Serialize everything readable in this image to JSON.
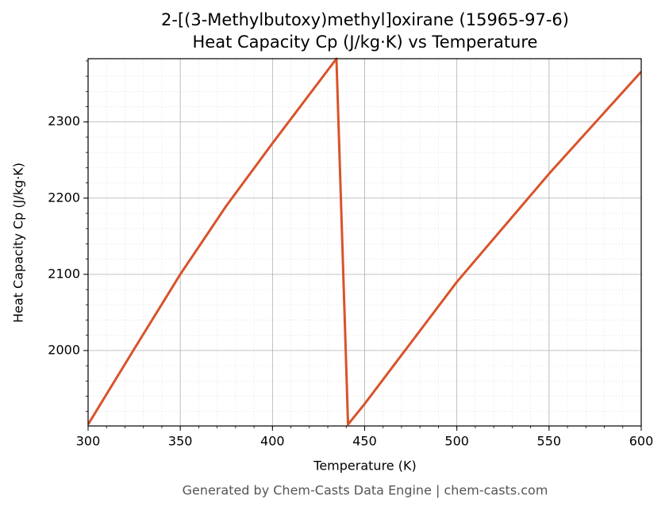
{
  "chart_data": {
    "type": "line",
    "title": "2-[(3-Methylbutoxy)methyl]oxirane (15965-97-6)",
    "subtitle": "Heat Capacity Cp (J/kg·K) vs Temperature",
    "x_label": "Temperature (K)",
    "y_label": "Heat Capacity Cp (J/kg·K)",
    "footer": "Generated by Chem-Casts Data Engine | chem-casts.com",
    "x": [
      300,
      325,
      350,
      375,
      400,
      434.7,
      441,
      450,
      500,
      550,
      600
    ],
    "series": [
      {
        "name": "Cp",
        "color": "#d9532a",
        "values": [
          1903,
          2002,
          2100,
          2190,
          2272,
          2383,
          1903,
          1930,
          2090,
          2232,
          2366
        ]
      }
    ],
    "xlim": [
      300,
      600
    ],
    "ylim": [
      1901,
      2383
    ],
    "xticks": [
      300,
      350,
      400,
      450,
      500,
      550,
      600
    ],
    "yticks": [
      2000,
      2100,
      2200,
      2300
    ],
    "grid": true
  }
}
